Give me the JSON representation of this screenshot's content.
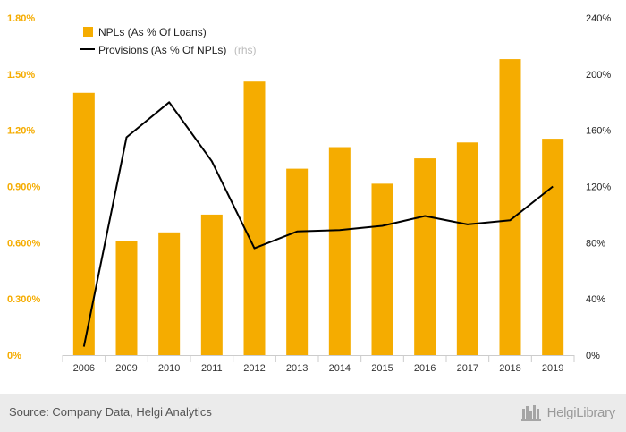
{
  "chart_data": {
    "type": "bar",
    "categories": [
      "2006",
      "2009",
      "2010",
      "2011",
      "2012",
      "2013",
      "2014",
      "2015",
      "2016",
      "2017",
      "2018",
      "2019"
    ],
    "series": [
      {
        "name": "NPLs (As % Of Loans)",
        "type": "bar",
        "axis": "left",
        "color": "#f5ac00",
        "values": [
          1.4,
          0.61,
          0.655,
          0.75,
          1.46,
          0.995,
          1.11,
          0.915,
          1.05,
          1.135,
          1.58,
          1.155
        ]
      },
      {
        "name": "Provisions (As % Of NPLs)",
        "name_suffix": "(rhs)",
        "type": "line",
        "axis": "right",
        "color": "#000000",
        "values": [
          6,
          155,
          180,
          138,
          76,
          88,
          89,
          92,
          99,
          93,
          96,
          120
        ]
      }
    ],
    "y_left": {
      "min": 0,
      "max": 1.8,
      "ticks": [
        0,
        0.3,
        0.6,
        0.9,
        1.2,
        1.5,
        1.8
      ],
      "tick_labels": [
        "0%",
        "0.300%",
        "0.600%",
        "0.900%",
        "1.20%",
        "1.50%",
        "1.80%"
      ]
    },
    "y_right": {
      "min": 0,
      "max": 240,
      "ticks": [
        0,
        40,
        80,
        120,
        160,
        200,
        240
      ],
      "tick_labels": [
        "0%",
        "40%",
        "80%",
        "120%",
        "160%",
        "200%",
        "240%"
      ]
    },
    "legend_position": "top-left",
    "grid": false
  },
  "footer": {
    "source": "Source: Company Data, Helgi Analytics",
    "brand": "HelgiLibrary"
  }
}
